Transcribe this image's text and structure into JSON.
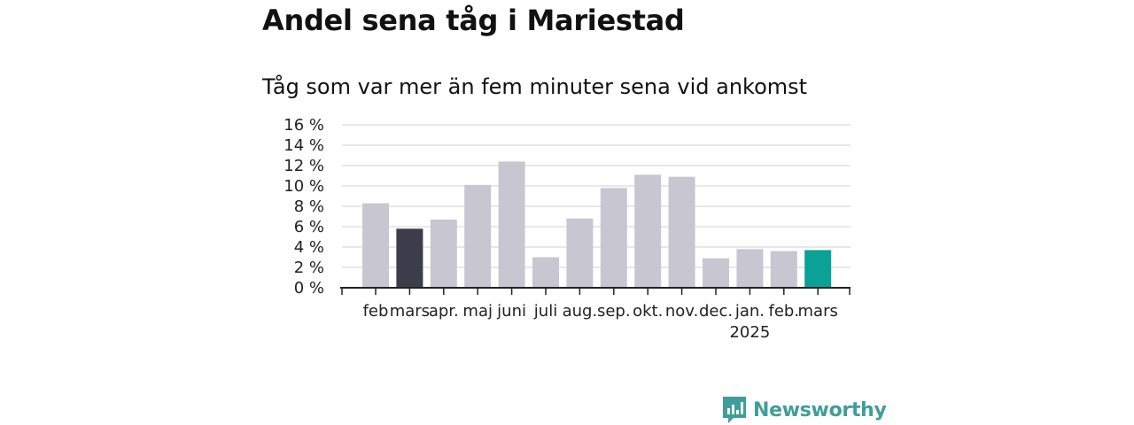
{
  "chart_data": {
    "type": "bar",
    "title": "Andel sena tåg i Mariestad",
    "subtitle": "Tåg som var mer än fem minuter sena vid ankomst",
    "categories": [
      "feb",
      "mars",
      "apr.",
      "maj",
      "juni",
      "juli",
      "aug.",
      "sep.",
      "okt.",
      "nov.",
      "dec.",
      "jan.",
      "feb.",
      "mars"
    ],
    "year_label": "2025",
    "year_label_category_index": 11,
    "values": [
      8.3,
      5.8,
      6.7,
      10.1,
      12.4,
      3.0,
      6.8,
      9.8,
      11.1,
      10.9,
      2.9,
      3.8,
      3.6,
      3.7
    ],
    "highlight": {
      "1": "#3d3c4a",
      "13": "#0aa196"
    },
    "bar_color": "#c8c7d1",
    "ylim": [
      0,
      16
    ],
    "yticks": [
      0,
      2,
      4,
      6,
      8,
      10,
      12,
      14,
      16
    ],
    "ytick_suffix": " %",
    "grid": true
  },
  "brand": {
    "name": "Newsworthy",
    "color": "#3f9e99"
  }
}
